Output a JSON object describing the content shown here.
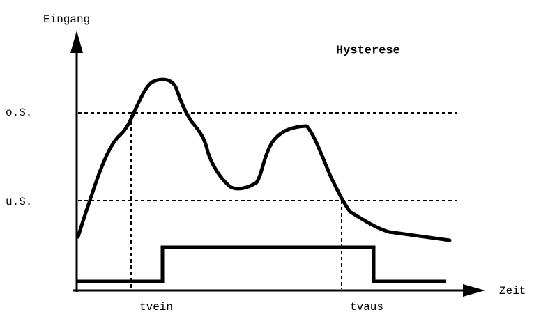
{
  "diagram": {
    "title": "Hysterese",
    "y_axis_label": "Eingang",
    "x_axis_label": "Zeit",
    "upper_threshold": "o.S.",
    "lower_threshold": "u.S.",
    "on_delay": "tvein",
    "off_delay": "tvaus"
  }
}
